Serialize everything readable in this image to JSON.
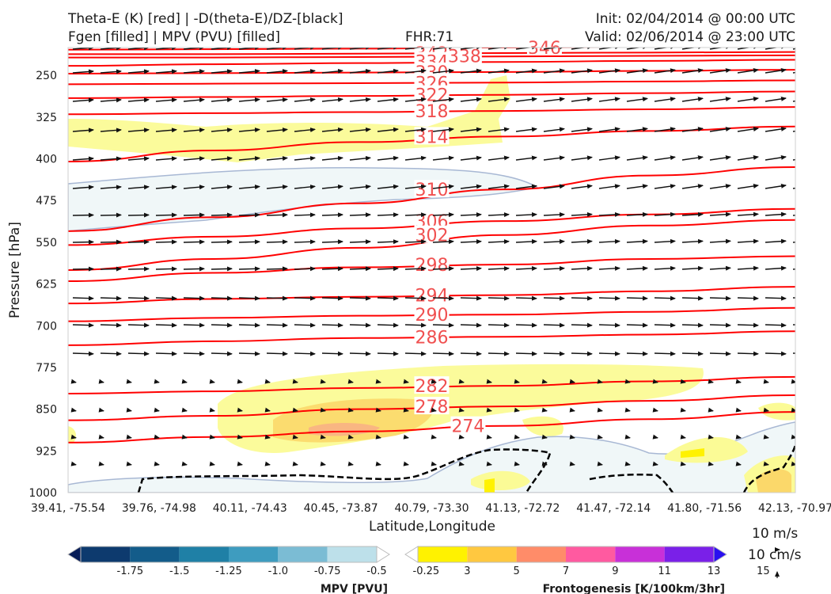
{
  "header": {
    "title_line1_left": "Theta-E (K) [red] | -D(theta-E)/DZ-[black]",
    "title_line2_left": "Fgen [filled] | MPV (PVU) [filled]",
    "fhr": "FHR:71",
    "init": "Init: 02/04/2014 @ 00:00 UTC",
    "valid": "Valid: 02/06/2014 @ 23:00 UTC"
  },
  "chart_data": {
    "type": "cross-section",
    "xlabel": "Latitude,Longitude",
    "ylabel": "Pressure [hPa]",
    "x_ticks": [
      "39.41, -75.54",
      "39.76, -74.98",
      "40.11, -74.43",
      "40.45, -73.87",
      "40.79, -73.30",
      "41.13, -72.72",
      "41.47, -72.14",
      "41.80, -71.56",
      "42.13, -70.97"
    ],
    "y_ticks": [
      250,
      325,
      400,
      475,
      550,
      625,
      700,
      775,
      850,
      925,
      1000
    ],
    "ylim": [
      1000,
      200
    ],
    "theta_e": {
      "color": "#ff0000",
      "label_color": "#f05050",
      "levels": [
        {
          "label": "346",
          "x": 0.655,
          "p": 200,
          "y": [
            204,
            203,
            202,
            200,
            199,
            198
          ]
        },
        {
          "label": "342",
          "x": 0.5,
          "p": 210,
          "y": [
            212,
            212,
            211,
            210,
            209,
            208
          ]
        },
        {
          "label": "338",
          "x": 0.545,
          "p": 215,
          "y": [
            218,
            218,
            217,
            216,
            215,
            214
          ]
        },
        {
          "label": "334",
          "x": 0.5,
          "p": 225,
          "y": [
            233,
            230,
            228,
            226,
            224,
            222
          ]
        },
        {
          "label": "330",
          "x": 0.5,
          "p": 244,
          "y": [
            247,
            246,
            245,
            244,
            242,
            240
          ]
        },
        {
          "label": "326",
          "x": 0.5,
          "p": 263,
          "y": [
            266,
            265,
            264,
            263,
            261,
            259
          ]
        },
        {
          "label": "322",
          "x": 0.5,
          "p": 285,
          "y": [
            291,
            289,
            287,
            285,
            282,
            279
          ]
        },
        {
          "label": "318",
          "x": 0.5,
          "p": 314,
          "y": [
            320,
            318,
            316,
            314,
            311,
            307
          ]
        },
        {
          "label": "314",
          "x": 0.5,
          "p": 360,
          "y": [
            405,
            385,
            370,
            360,
            350,
            342
          ]
        },
        {
          "label": "310",
          "x": 0.5,
          "p": 455,
          "y": [
            530,
            505,
            480,
            455,
            430,
            415
          ]
        },
        {
          "label": "306",
          "x": 0.5,
          "p": 512,
          "y": [
            555,
            540,
            525,
            512,
            500,
            490
          ]
        },
        {
          "label": "302",
          "x": 0.5,
          "p": 537,
          "y": [
            600,
            580,
            560,
            537,
            520,
            510
          ]
        },
        {
          "label": "298",
          "x": 0.5,
          "p": 590,
          "y": [
            620,
            605,
            595,
            590,
            580,
            575
          ]
        },
        {
          "label": "294",
          "x": 0.5,
          "p": 645,
          "y": [
            660,
            652,
            648,
            645,
            638,
            630
          ]
        },
        {
          "label": "290",
          "x": 0.5,
          "p": 680,
          "y": [
            692,
            686,
            682,
            680,
            675,
            668
          ]
        },
        {
          "label": "286",
          "x": 0.5,
          "p": 720,
          "y": [
            735,
            728,
            722,
            720,
            716,
            710
          ]
        },
        {
          "label": "282",
          "x": 0.5,
          "p": 808,
          "y": [
            822,
            818,
            812,
            808,
            800,
            792
          ]
        },
        {
          "label": "278",
          "x": 0.5,
          "p": 845,
          "y": [
            870,
            862,
            850,
            845,
            835,
            825
          ]
        },
        {
          "label": "274",
          "x": 0.55,
          "p": 880,
          "y": [
            910,
            900,
            890,
            880,
            868,
            855
          ]
        }
      ]
    },
    "colorbars": [
      {
        "title": "MPV [PVU]",
        "ticks": [
          "-1.75",
          "-1.5",
          "-1.25",
          "-1.0",
          "-0.75",
          "-0.5",
          "-0.25"
        ],
        "colors": [
          "#081d58",
          "#0d3a6e",
          "#135c8a",
          "#1f80a6",
          "#3e9cbf",
          "#7bbcd4",
          "#bde0ea",
          "#ffffff"
        ]
      },
      {
        "title": "Frontogenesis [K/100km/3hr]",
        "ticks": [
          "3",
          "5",
          "7",
          "9",
          "11",
          "13",
          "15"
        ],
        "colors": [
          "#ffffff",
          "#fff200",
          "#ffc840",
          "#ff8c69",
          "#ff5aa0",
          "#c830d8",
          "#7a20e8",
          "#2a10f0"
        ]
      }
    ],
    "reference_vectors": [
      "10 m/s",
      "10 cm/s"
    ]
  }
}
